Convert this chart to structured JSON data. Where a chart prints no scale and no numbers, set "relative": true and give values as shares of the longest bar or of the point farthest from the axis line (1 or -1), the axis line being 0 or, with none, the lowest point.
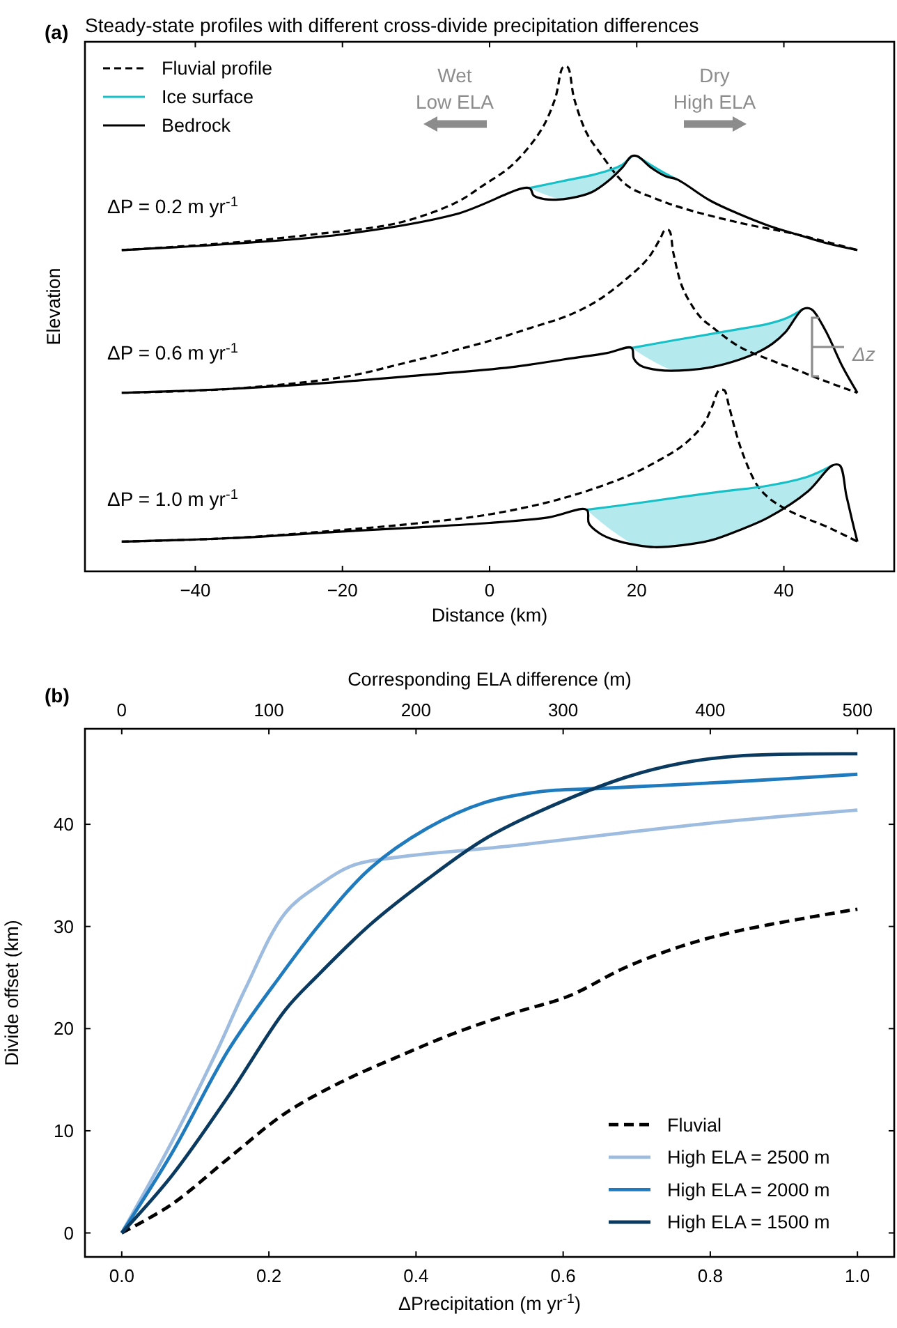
{
  "chart_data": [
    {
      "type": "line",
      "title": "Steady-state profiles with different cross-divide precipitation differences",
      "xlabel": "Distance (km)",
      "ylabel": "Elevation",
      "relative": true,
      "tick_labels": "x",
      "legend": "top left",
      "xlim": [
        -55,
        55
      ],
      "xticks": [
        {
          "value": -40,
          "label": "−40"
        },
        {
          "value": -20,
          "label": "−20"
        },
        0,
        20,
        40
      ],
      "annotations": [
        "(a)",
        "Wet\nLow ELA",
        "Dry\nHigh ELA",
        "Δz",
        "ΔP = 0.2 m yr$^{-1}$",
        "ΔP = 0.6 m yr$^{-1}$",
        "ΔP = 1.0 m yr$^{-1}$"
      ],
      "series": [
        {
          "name": "Fluvial profile",
          "color": "#000000",
          "line_style": "dashed",
          "x": [
            -50,
            -35.6,
            -24,
            -12.4,
            -4.6,
            -0.8,
            3.1,
            7,
            8.9,
            10,
            10.6,
            11.5,
            13.2,
            15,
            18.6,
            22.4,
            26.3,
            34,
            41.8,
            50
          ],
          "values": [
            0.637,
            0.651,
            0.668,
            0.691,
            0.731,
            0.766,
            0.806,
            0.875,
            0.937,
            1,
            1,
            0.937,
            0.869,
            0.83,
            0.766,
            0.74,
            0.72,
            0.691,
            0.668,
            0.637
          ]
        },
        {
          "name": "Ice surface",
          "color": "#17bfc7",
          "x": [
            5.4,
            10,
            14,
            16.2,
            18,
            19.3,
            null,
            20.1,
            22,
            24,
            25.5
          ],
          "values": [
            0.76,
            0.774,
            0.786,
            0.795,
            0.806,
            0.823,
            null,
            0.823,
            0.805,
            0.788,
            0.777
          ],
          "lower": [
            0.76,
            0.738,
            0.752,
            0.775,
            0.8,
            0.823,
            null,
            0.823,
            0.8,
            0.783,
            0.777
          ],
          "upper": [
            0.76,
            0.774,
            0.786,
            0.795,
            0.806,
            0.823,
            null,
            0.823,
            0.805,
            0.788,
            0.777
          ]
        },
        {
          "name": "Bedrock",
          "color": "#000000",
          "line_style": "solid",
          "x": [
            -50,
            -35.6,
            -20.1,
            -4.6,
            5.4,
            6,
            7.5,
            9,
            11,
            13.9,
            16.2,
            18,
            19.3,
            20.1,
            22,
            24,
            25.5,
            30,
            34,
            38,
            41.8,
            46,
            50
          ],
          "values": [
            0.637,
            0.649,
            0.668,
            0.708,
            0.76,
            0.745,
            0.738,
            0.737,
            0.74,
            0.752,
            0.775,
            0.8,
            0.823,
            0.823,
            0.8,
            0.783,
            0.777,
            0.735,
            0.708,
            0.685,
            0.668,
            0.65,
            0.637
          ]
        },
        {
          "color": "#000000",
          "line_style": "dashed",
          "x": [
            -50,
            -35,
            -20,
            -12.4,
            0,
            5,
            10.8,
            14.7,
            18.6,
            21.5,
            23.2,
            23.8,
            24.4,
            25,
            26.3,
            28.6,
            30.2,
            34,
            38,
            41.8,
            46,
            50
          ],
          "values": [
            0.354,
            0.362,
            0.385,
            0.41,
            0.457,
            0.48,
            0.508,
            0.537,
            0.58,
            0.62,
            0.66,
            0.676,
            0.676,
            0.63,
            0.56,
            0.505,
            0.485,
            0.445,
            0.42,
            0.399,
            0.375,
            0.354
          ]
        },
        {
          "color": "#17bfc7",
          "x": [
            19.3,
            25,
            30.2,
            35,
            37.9,
            40.5,
            42.6
          ],
          "values": [
            0.443,
            0.458,
            0.471,
            0.483,
            0.491,
            0.503,
            0.52
          ],
          "lower": [
            0.443,
            0.399,
            0.405,
            0.424,
            0.447,
            0.478,
            0.52
          ],
          "upper": [
            0.443,
            0.458,
            0.471,
            0.483,
            0.491,
            0.503,
            0.52
          ]
        },
        {
          "color": "#000000",
          "line_style": "solid",
          "x": [
            -50,
            -35,
            -20,
            -10,
            3,
            10,
            16,
            19.3,
            19.6,
            20.5,
            23,
            27,
            30.2,
            34,
            36.4,
            38.5,
            40.2,
            42.6,
            43.7,
            45.6,
            48,
            50
          ],
          "values": [
            0.354,
            0.362,
            0.376,
            0.388,
            0.405,
            0.42,
            0.433,
            0.443,
            0.422,
            0.408,
            0.399,
            0.399,
            0.405,
            0.42,
            0.434,
            0.452,
            0.474,
            0.52,
            0.52,
            0.479,
            0.405,
            0.354
          ]
        },
        {
          "color": "#000000",
          "line_style": "dashed",
          "x": [
            -50,
            -35,
            -20,
            -10,
            0,
            10,
            18.6,
            23,
            26.3,
            29,
            30.2,
            31.2,
            31.9,
            32.5,
            33.3,
            34.5,
            36.4,
            38,
            40.2,
            43,
            45.6,
            50
          ],
          "values": [
            0.059,
            0.066,
            0.082,
            0.095,
            0.113,
            0.145,
            0.188,
            0.22,
            0.25,
            0.29,
            0.325,
            0.359,
            0.359,
            0.33,
            0.285,
            0.23,
            0.17,
            0.145,
            0.124,
            0.105,
            0.09,
            0.059
          ]
        },
        {
          "color": "#17bfc7",
          "x": [
            13.2,
            20,
            26.3,
            32,
            37.9,
            43.3,
            46.6
          ],
          "values": [
            0.122,
            0.135,
            0.148,
            0.159,
            0.17,
            0.188,
            0.21
          ],
          "lower": [
            0.122,
            0.052,
            0.052,
            0.07,
            0.107,
            0.159,
            0.21
          ],
          "upper": [
            0.122,
            0.135,
            0.148,
            0.159,
            0.17,
            0.188,
            0.21
          ]
        },
        {
          "color": "#000000",
          "line_style": "solid",
          "x": [
            -50,
            -35,
            -20,
            -10,
            0,
            8,
            13.2,
            13.5,
            15,
            17,
            20,
            22.4,
            26.3,
            30.2,
            34,
            37.9,
            43.3,
            46.6,
            47.6,
            48.5,
            49.3,
            50
          ],
          "values": [
            0.059,
            0.066,
            0.079,
            0.087,
            0.096,
            0.107,
            0.122,
            0.095,
            0.075,
            0.062,
            0.052,
            0.048,
            0.052,
            0.062,
            0.082,
            0.107,
            0.159,
            0.21,
            0.21,
            0.15,
            0.1,
            0.059
          ]
        }
      ]
    },
    {
      "type": "line",
      "xlabel": "ΔPrecipitation (m yr$^{-1}$)",
      "ylabel": "Divide offset (km)",
      "x2label": "Corresponding ELA difference (m)",
      "legend": "bottom right",
      "xlim": [
        -0.05,
        1.05
      ],
      "xticks": [
        {
          "value": 0,
          "label": "0.0"
        },
        0.2,
        0.4,
        0.6,
        0.8,
        {
          "value": 1,
          "label": "1.0"
        }
      ],
      "x2lim": [
        -25,
        525
      ],
      "x2ticks": [
        0,
        100,
        200,
        300,
        400,
        500
      ],
      "ylim": [
        -2.35,
        49.35
      ],
      "yticks": [
        0,
        10,
        20,
        30,
        40
      ],
      "annotations": [
        "(b)"
      ],
      "series": [
        {
          "name": "Fluvial",
          "color": "#000000",
          "line_style": "dashed",
          "x": [
            0,
            0.068,
            0.145,
            0.222,
            0.299,
            0.377,
            0.454,
            0.531,
            0.608,
            0.685,
            0.762,
            0.84,
            1
          ],
          "values": [
            0,
            2.8,
            7.3,
            11.7,
            14.8,
            17.3,
            19.6,
            21.5,
            23.2,
            26,
            28.1,
            29.6,
            31.7
          ]
        },
        {
          "name": "High ELA = 2500 m",
          "color": "#9dbcdf",
          "line_style": "solid",
          "x": [
            0,
            0.068,
            0.13,
            0.168,
            0.222,
            0.269,
            0.315,
            0.377,
            0.531,
            0.685,
            0.84,
            1
          ],
          "values": [
            0,
            8.9,
            17.9,
            23.9,
            31.3,
            34.1,
            36,
            36.8,
            37.9,
            39.2,
            40.4,
            41.4
          ]
        },
        {
          "name": "High ELA = 2000 m",
          "color": "#1f7bbd",
          "line_style": "solid",
          "x": [
            0,
            0.068,
            0.145,
            0.215,
            0.269,
            0.338,
            0.415,
            0.492,
            0.569,
            0.647,
            0.84,
            1
          ],
          "values": [
            0,
            7.8,
            17.9,
            25.1,
            30.2,
            35.7,
            39.6,
            42.1,
            43.2,
            43.5,
            44.2,
            44.9
          ]
        },
        {
          "name": "High ELA = 1500 m",
          "color": "#0b3a60",
          "line_style": "solid",
          "x": [
            0,
            0.068,
            0.145,
            0.222,
            0.265,
            0.338,
            0.415,
            0.492,
            0.569,
            0.685,
            0.762,
            0.84,
            1
          ],
          "values": [
            0,
            5.6,
            13.4,
            21.8,
            25.1,
            30.2,
            34.6,
            38.5,
            41.3,
            44.6,
            46,
            46.7,
            46.9
          ]
        }
      ]
    }
  ]
}
